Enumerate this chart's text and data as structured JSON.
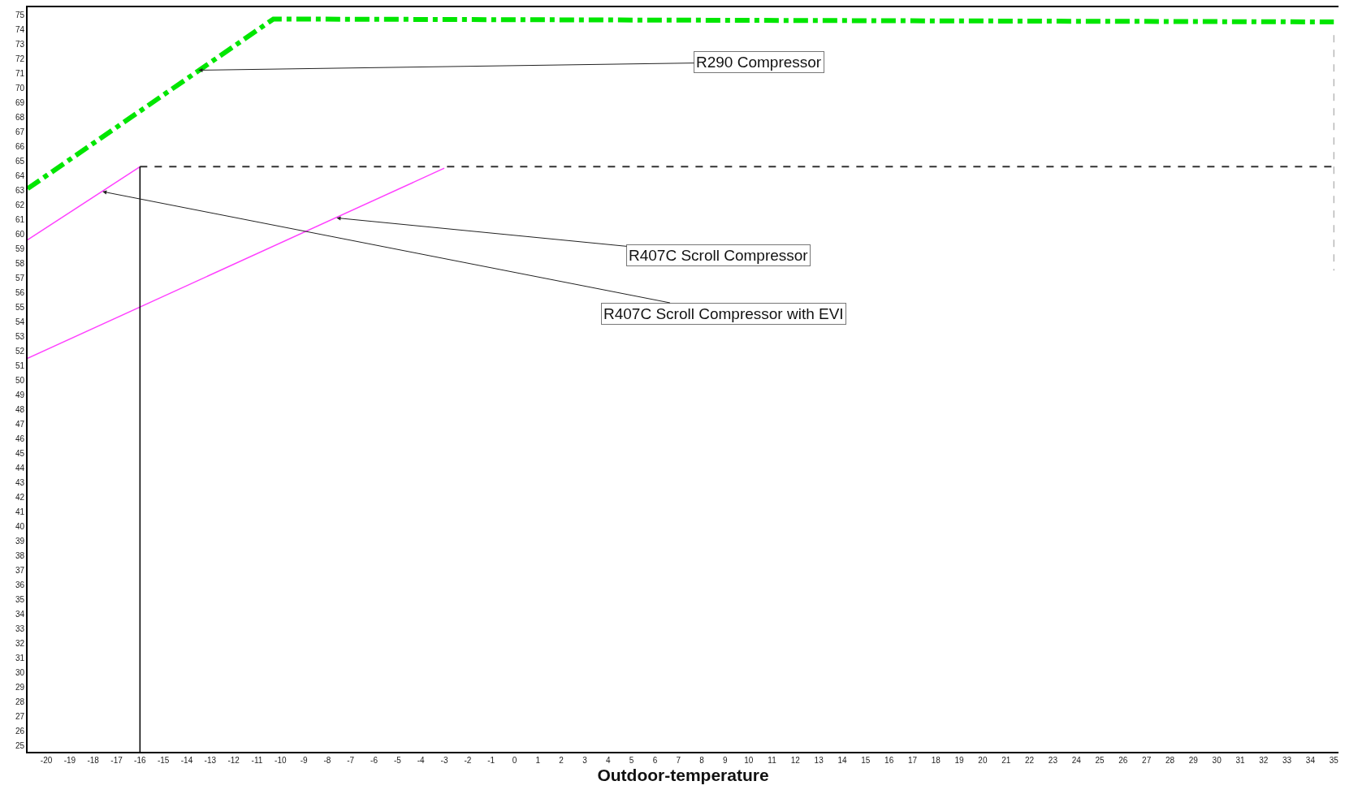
{
  "chart_data": {
    "type": "line",
    "xlabel": "Outdoor-temperature",
    "series": [
      {
        "color": "#00e600",
        "line_style": "dashdot",
        "x": [
          -20.8,
          -10.3,
          35
        ],
        "values": [
          63.1,
          74.7,
          74.5
        ]
      },
      {
        "color": "#ff40ff",
        "line_style": "solid",
        "x": [
          -20.8,
          -16
        ],
        "values": [
          59.6,
          64.6
        ]
      },
      {
        "color": "#ff40ff",
        "line_style": "solid",
        "x": [
          -20.8,
          -3
        ],
        "values": [
          51.5,
          64.5
        ]
      },
      {
        "color": "#333333",
        "line_style": "dashed",
        "x": [
          -16,
          35
        ],
        "values": [
          64.6,
          64.6
        ]
      },
      {
        "color": "#000000",
        "line_style": "solid",
        "x": [
          -16,
          -16
        ],
        "values": [
          64.6,
          24.6
        ]
      },
      {
        "color": "#999999",
        "line_style": "dashed",
        "x": [
          35,
          35
        ],
        "values": [
          73.6,
          57.5
        ]
      }
    ],
    "annotations": [
      {
        "text": "R290 Compressor",
        "x": -13.5,
        "y": 71.2
      },
      {
        "text": "R407C Scroll Compressor",
        "x": -7.6,
        "y": 61.1
      },
      {
        "text": "R407C Scroll Compressor with EVI",
        "x": -17.6,
        "y": 62.9
      }
    ],
    "xlim": [
      -20.8,
      35.2
    ],
    "xticks": [
      -20,
      -19,
      -18,
      -17,
      -16,
      -15,
      -14,
      -13,
      -12,
      -11,
      -10,
      -9,
      -8,
      -7,
      -6,
      -5,
      -4,
      -3,
      -2,
      -1,
      0,
      1,
      2,
      3,
      4,
      5,
      6,
      7,
      8,
      9,
      10,
      11,
      12,
      13,
      14,
      15,
      16,
      17,
      18,
      19,
      20,
      21,
      22,
      23,
      24,
      25,
      26,
      27,
      28,
      29,
      30,
      31,
      32,
      33,
      34,
      35
    ],
    "ylim": [
      24.6,
      75.5
    ],
    "yticks": [
      25,
      26,
      27,
      28,
      29,
      30,
      31,
      32,
      33,
      34,
      35,
      36,
      37,
      38,
      39,
      40,
      41,
      42,
      43,
      44,
      45,
      46,
      47,
      48,
      49,
      50,
      51,
      52,
      53,
      54,
      55,
      56,
      57,
      58,
      59,
      60,
      61,
      62,
      63,
      64,
      65,
      66,
      67,
      68,
      69,
      70,
      71,
      72,
      73,
      74,
      75
    ],
    "grid": false,
    "marker": "none"
  }
}
